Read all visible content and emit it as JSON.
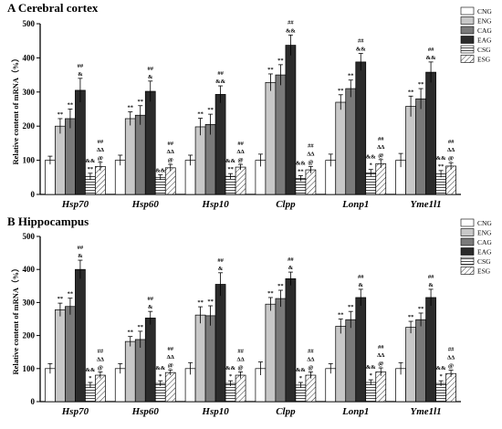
{
  "chart_data": [
    {
      "type": "bar",
      "panel_letter": "A",
      "title": "Cerebral cortex",
      "ylabel": "Relative content of mRNA（%）",
      "ylim": [
        0,
        500
      ],
      "yticks": [
        "0",
        "100",
        "200",
        "300",
        "400",
        "500"
      ],
      "categories": [
        "Hsp70",
        "Hsp60",
        "Hsp10",
        "Clpp",
        "Lonp1",
        "Yme1l1"
      ],
      "legend": [
        "CNG",
        "ENG",
        "CAG",
        "EAG",
        "CSG",
        "ESG"
      ],
      "legend_position": "top-right",
      "grid": false,
      "series": [
        {
          "name": "CNG",
          "values": [
            100,
            100,
            100,
            100,
            100,
            100
          ],
          "errors": [
            12,
            15,
            15,
            18,
            18,
            20
          ],
          "annotations": [
            "",
            "",
            "",
            "",
            "",
            ""
          ]
        },
        {
          "name": "ENG",
          "values": [
            200,
            222,
            198,
            328,
            270,
            258
          ],
          "errors": [
            22,
            20,
            25,
            25,
            22,
            30
          ],
          "annotations": [
            "**",
            "**",
            "**",
            "**",
            "**",
            "**"
          ]
        },
        {
          "name": "CAG",
          "values": [
            222,
            232,
            205,
            350,
            310,
            280
          ],
          "errors": [
            28,
            28,
            30,
            30,
            25,
            30
          ],
          "annotations": [
            "**",
            "**",
            "**",
            "**",
            "**",
            "**"
          ]
        },
        {
          "name": "EAG",
          "values": [
            305,
            302,
            293,
            437,
            388,
            358
          ],
          "errors": [
            35,
            30,
            25,
            30,
            25,
            30
          ],
          "annotations": [
            "##\n&",
            "##\n&",
            "##\n&&",
            "##\n&&",
            "##\n&&",
            "##\n&&"
          ]
        },
        {
          "name": "CSG",
          "values": [
            52,
            50,
            53,
            47,
            63,
            60
          ],
          "errors": [
            10,
            8,
            8,
            8,
            10,
            10
          ],
          "annotations": [
            "&&\n**",
            "&&",
            "&&\n**",
            "&&\n**",
            "&&\n*",
            "&&\n**"
          ]
        },
        {
          "name": "ESG",
          "values": [
            82,
            78,
            80,
            72,
            90,
            83
          ],
          "errors": [
            12,
            10,
            8,
            10,
            12,
            10
          ],
          "annotations": [
            "##\nΔΔ\n@",
            "##\nΔΔ\n@",
            "##\nΔΔ\n@",
            "##\nΔΔ\n@",
            "##\nΔΔ\n@",
            "##\nΔΔ\n@"
          ]
        }
      ]
    },
    {
      "type": "bar",
      "panel_letter": "B",
      "title": "Hippocampus",
      "ylabel": "Relative content of mRNA（%）",
      "ylim": [
        0,
        500
      ],
      "yticks": [
        "0",
        "100",
        "200",
        "300",
        "400",
        "500"
      ],
      "categories": [
        "Hsp70",
        "Hsp60",
        "Hsp10",
        "Clpp",
        "Lonp1",
        "Yme1l1"
      ],
      "legend": [
        "CNG",
        "ENG",
        "CAG",
        "EAG",
        "CSG",
        "ESG"
      ],
      "legend_position": "top-right",
      "grid": false,
      "series": [
        {
          "name": "CNG",
          "values": [
            100,
            100,
            100,
            100,
            100,
            100
          ],
          "errors": [
            15,
            15,
            18,
            20,
            15,
            18
          ],
          "annotations": [
            "",
            "",
            "",
            "",
            "",
            ""
          ]
        },
        {
          "name": "ENG",
          "values": [
            278,
            182,
            262,
            295,
            228,
            225
          ],
          "errors": [
            20,
            15,
            25,
            20,
            22,
            18
          ],
          "annotations": [
            "**",
            "**",
            "**",
            "**",
            "**",
            "**"
          ]
        },
        {
          "name": "CAG",
          "values": [
            288,
            188,
            260,
            312,
            248,
            248
          ],
          "errors": [
            25,
            25,
            30,
            25,
            25,
            20
          ],
          "annotations": [
            "**",
            "**",
            "**",
            "**",
            "**",
            "**"
          ]
        },
        {
          "name": "EAG",
          "values": [
            400,
            253,
            355,
            372,
            315,
            315
          ],
          "errors": [
            28,
            20,
            35,
            20,
            25,
            25
          ],
          "annotations": [
            "##\n&",
            "##\n&",
            "##\n&",
            "##\n&",
            "##\n&",
            "##\n&"
          ]
        },
        {
          "name": "CSG",
          "values": [
            50,
            55,
            55,
            50,
            58,
            55
          ],
          "errors": [
            8,
            8,
            8,
            8,
            8,
            8
          ],
          "annotations": [
            "&&\n*",
            "&&\n*",
            "&&\n*",
            "&&\n*",
            "&&\n*",
            "&&\n*"
          ]
        },
        {
          "name": "ESG",
          "values": [
            80,
            88,
            80,
            80,
            90,
            85
          ],
          "errors": [
            10,
            8,
            10,
            10,
            12,
            10
          ],
          "annotations": [
            "##\nΔΔ\n@",
            "##\nΔΔ\n@",
            "##\nΔΔ\n@",
            "##\nΔΔ\n@",
            "##\nΔΔ\n@",
            "##\nΔΔ\n@"
          ]
        }
      ]
    }
  ]
}
